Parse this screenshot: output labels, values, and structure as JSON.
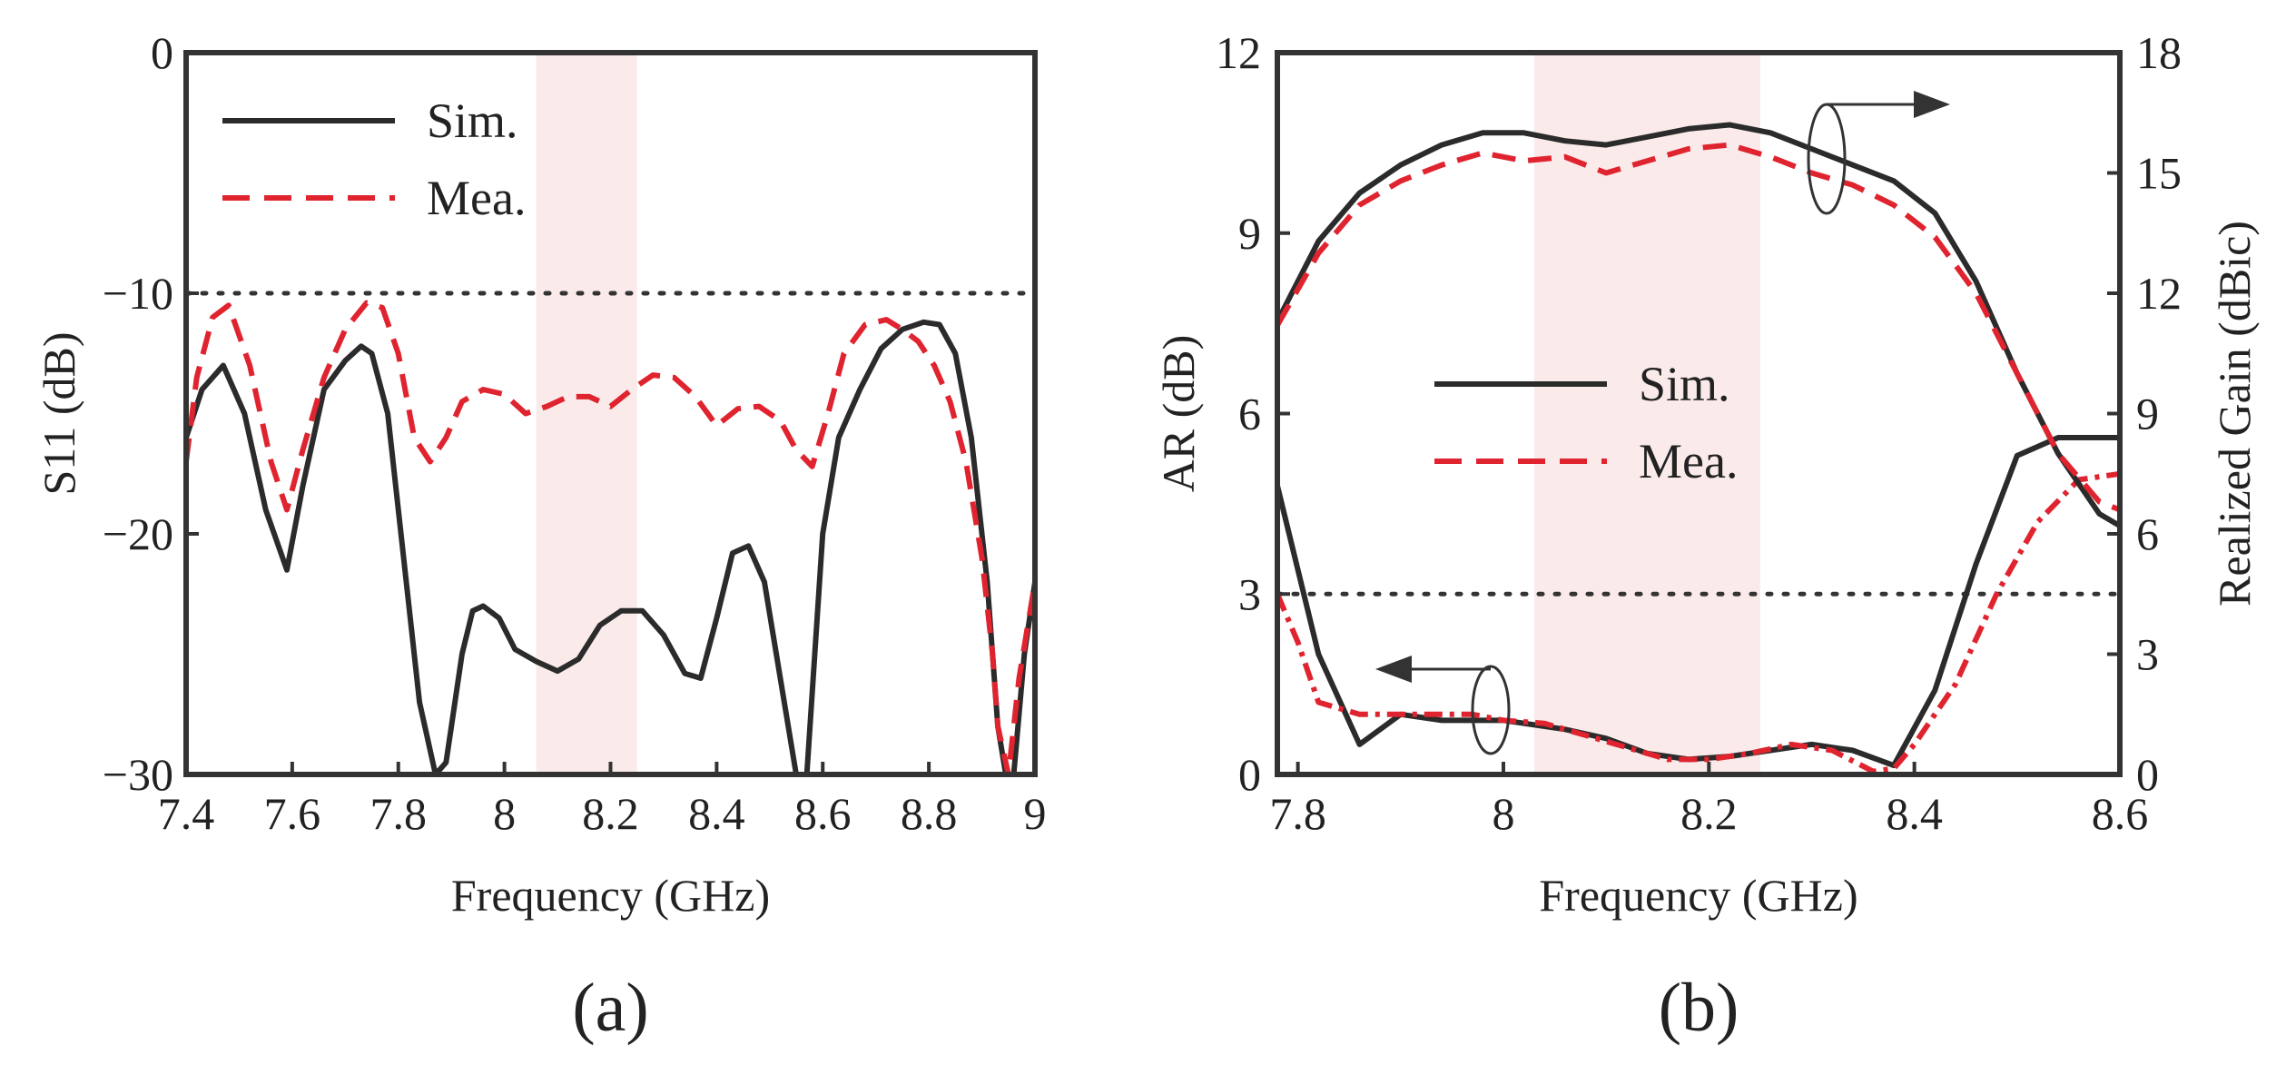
{
  "chart_data": [
    {
      "type": "line",
      "caption": "(a)",
      "xlabel": "Frequency (GHz)",
      "ylabel": "S11 (dB)",
      "xlim": [
        7.4,
        9.0
      ],
      "ylim": [
        -30,
        0
      ],
      "xticks": [
        "7.4",
        "7.6",
        "7.8",
        "8",
        "8.2",
        "8.4",
        "8.6",
        "8.8",
        "9"
      ],
      "yticks": [
        "0",
        "−10",
        "−20",
        "−30"
      ],
      "ytick_values": [
        0,
        -10,
        -20,
        -30
      ],
      "xtick_values": [
        7.4,
        7.6,
        7.8,
        8.0,
        8.2,
        8.4,
        8.6,
        8.8,
        9.0
      ],
      "band": [
        8.06,
        8.25
      ],
      "reference_line": -10,
      "legend": [
        "Sim.",
        "Mea."
      ],
      "series": [
        {
          "name": "Sim.",
          "style": "solid",
          "color": "#2b2b2b",
          "x": [
            7.4,
            7.43,
            7.47,
            7.51,
            7.55,
            7.59,
            7.62,
            7.66,
            7.7,
            7.73,
            7.75,
            7.78,
            7.81,
            7.84,
            7.87,
            7.89,
            7.9,
            7.92,
            7.94,
            7.96,
            7.99,
            8.02,
            8.06,
            8.1,
            8.14,
            8.18,
            8.22,
            8.26,
            8.3,
            8.34,
            8.37,
            8.4,
            8.43,
            8.46,
            8.49,
            8.52,
            8.55,
            8.57,
            8.6,
            8.63,
            8.67,
            8.71,
            8.75,
            8.79,
            8.82,
            8.85,
            8.88,
            8.91,
            8.93,
            8.945,
            8.96,
            8.98,
            9.0
          ],
          "y": [
            -16,
            -14,
            -13,
            -15,
            -19,
            -21.5,
            -18,
            -14,
            -12.8,
            -12.2,
            -12.5,
            -15,
            -21,
            -27,
            -30,
            -29.5,
            -28,
            -25,
            -23.2,
            -23,
            -23.5,
            -24.8,
            -25.3,
            -25.7,
            -25.2,
            -23.8,
            -23.2,
            -23.2,
            -24.2,
            -25.8,
            -26,
            -23.5,
            -20.8,
            -20.5,
            -22,
            -26,
            -30,
            -30,
            -20,
            -16,
            -14,
            -12.3,
            -11.5,
            -11.2,
            -11.3,
            -12.5,
            -16,
            -22,
            -28,
            -30,
            -30,
            -25,
            -22
          ]
        },
        {
          "name": "Mea.",
          "style": "dashed",
          "color": "#e0242f",
          "x": [
            7.4,
            7.42,
            7.45,
            7.48,
            7.52,
            7.56,
            7.59,
            7.62,
            7.66,
            7.7,
            7.74,
            7.77,
            7.8,
            7.83,
            7.86,
            7.89,
            7.92,
            7.96,
            8.0,
            8.04,
            8.08,
            8.12,
            8.16,
            8.2,
            8.24,
            8.28,
            8.32,
            8.36,
            8.4,
            8.44,
            8.48,
            8.52,
            8.55,
            8.58,
            8.61,
            8.64,
            8.68,
            8.72,
            8.75,
            8.78,
            8.81,
            8.84,
            8.87,
            8.9,
            8.92,
            8.93,
            8.95,
            8.97,
            9.0
          ],
          "y": [
            -17,
            -13.5,
            -11,
            -10.5,
            -13,
            -17,
            -19,
            -16.5,
            -13.5,
            -11.5,
            -10.4,
            -10.6,
            -12.5,
            -16,
            -17,
            -16,
            -14.5,
            -14,
            -14.2,
            -15,
            -14.7,
            -14.3,
            -14.3,
            -14.7,
            -14,
            -13.4,
            -13.5,
            -14.3,
            -15.5,
            -14.8,
            -14.7,
            -15.3,
            -16.5,
            -17.2,
            -15,
            -12.5,
            -11.3,
            -11.1,
            -11.5,
            -12,
            -13,
            -14.5,
            -17,
            -21,
            -25,
            -28,
            -30,
            -26,
            -22
          ]
        }
      ]
    },
    {
      "type": "line",
      "caption": "(b)",
      "xlabel": "Frequency (GHz)",
      "ylabel": "AR (dB)",
      "ylabel_right": "Realized Gain (dBic)",
      "xlim": [
        7.78,
        8.6
      ],
      "ylim": [
        0,
        12
      ],
      "ylim_right": [
        0,
        18
      ],
      "xticks": [
        "7.8",
        "8",
        "8.2",
        "8.4",
        "8.6"
      ],
      "xtick_values": [
        7.8,
        8.0,
        8.2,
        8.4,
        8.6
      ],
      "yticks": [
        "0",
        "3",
        "6",
        "9",
        "12"
      ],
      "ytick_values": [
        0,
        3,
        6,
        9,
        12
      ],
      "yticks_right": [
        "0",
        "3",
        "6",
        "9",
        "12",
        "15",
        "18"
      ],
      "ytick_values_right": [
        0,
        3,
        6,
        9,
        12,
        15,
        18
      ],
      "band": [
        8.03,
        8.25
      ],
      "reference_line": 3,
      "legend": [
        "Sim.",
        "Mea."
      ],
      "series": [
        {
          "name": "Sim. AR",
          "axis": "left",
          "style": "solid",
          "color": "#2b2b2b",
          "x": [
            7.78,
            7.82,
            7.86,
            7.9,
            7.94,
            8.0,
            8.06,
            8.1,
            8.14,
            8.18,
            8.22,
            8.26,
            8.3,
            8.34,
            8.38,
            8.42,
            8.46,
            8.5,
            8.54,
            8.58,
            8.6
          ],
          "y": [
            4.8,
            2.0,
            0.5,
            1.0,
            0.9,
            0.9,
            0.75,
            0.6,
            0.35,
            0.25,
            0.3,
            0.4,
            0.5,
            0.4,
            0.15,
            1.4,
            3.5,
            5.3,
            5.6,
            5.6,
            5.6
          ]
        },
        {
          "name": "Mea. AR",
          "axis": "left",
          "style": "dashdot",
          "color": "#e0242f",
          "x": [
            7.78,
            7.8,
            7.82,
            7.86,
            7.9,
            7.94,
            7.97,
            8.0,
            8.04,
            8.08,
            8.12,
            8.16,
            8.2,
            8.24,
            8.28,
            8.32,
            8.36,
            8.38,
            8.4,
            8.44,
            8.48,
            8.52,
            8.56,
            8.6
          ],
          "y": [
            3.0,
            2.2,
            1.2,
            1.0,
            1.0,
            1.0,
            1.0,
            0.9,
            0.85,
            0.65,
            0.45,
            0.25,
            0.25,
            0.35,
            0.5,
            0.4,
            0.05,
            0.1,
            0.5,
            1.5,
            3.0,
            4.2,
            4.9,
            5.0
          ]
        },
        {
          "name": "Sim. Gain",
          "axis": "right",
          "style": "solid",
          "color": "#2b2b2b",
          "x": [
            7.78,
            7.82,
            7.86,
            7.9,
            7.94,
            7.98,
            8.02,
            8.06,
            8.1,
            8.14,
            8.18,
            8.22,
            8.26,
            8.3,
            8.34,
            8.38,
            8.42,
            8.46,
            8.5,
            8.54,
            8.58,
            8.6
          ],
          "y": [
            11.3,
            13.3,
            14.5,
            15.2,
            15.7,
            16.0,
            16.0,
            15.8,
            15.7,
            15.9,
            16.1,
            16.2,
            16.0,
            15.6,
            15.2,
            14.8,
            14.0,
            12.3,
            10.0,
            8.0,
            6.5,
            6.2
          ]
        },
        {
          "name": "Mea. Gain",
          "axis": "right",
          "style": "dashed",
          "color": "#e0242f",
          "x": [
            7.78,
            7.82,
            7.86,
            7.9,
            7.94,
            7.98,
            8.02,
            8.06,
            8.1,
            8.14,
            8.18,
            8.22,
            8.26,
            8.3,
            8.34,
            8.38,
            8.42,
            8.46,
            8.5,
            8.54,
            8.58,
            8.6
          ],
          "y": [
            11.2,
            13.0,
            14.2,
            14.8,
            15.2,
            15.5,
            15.3,
            15.4,
            15.0,
            15.3,
            15.6,
            15.7,
            15.4,
            15.0,
            14.7,
            14.2,
            13.4,
            12.0,
            10.0,
            8.0,
            6.8,
            6.6
          ]
        }
      ]
    }
  ]
}
